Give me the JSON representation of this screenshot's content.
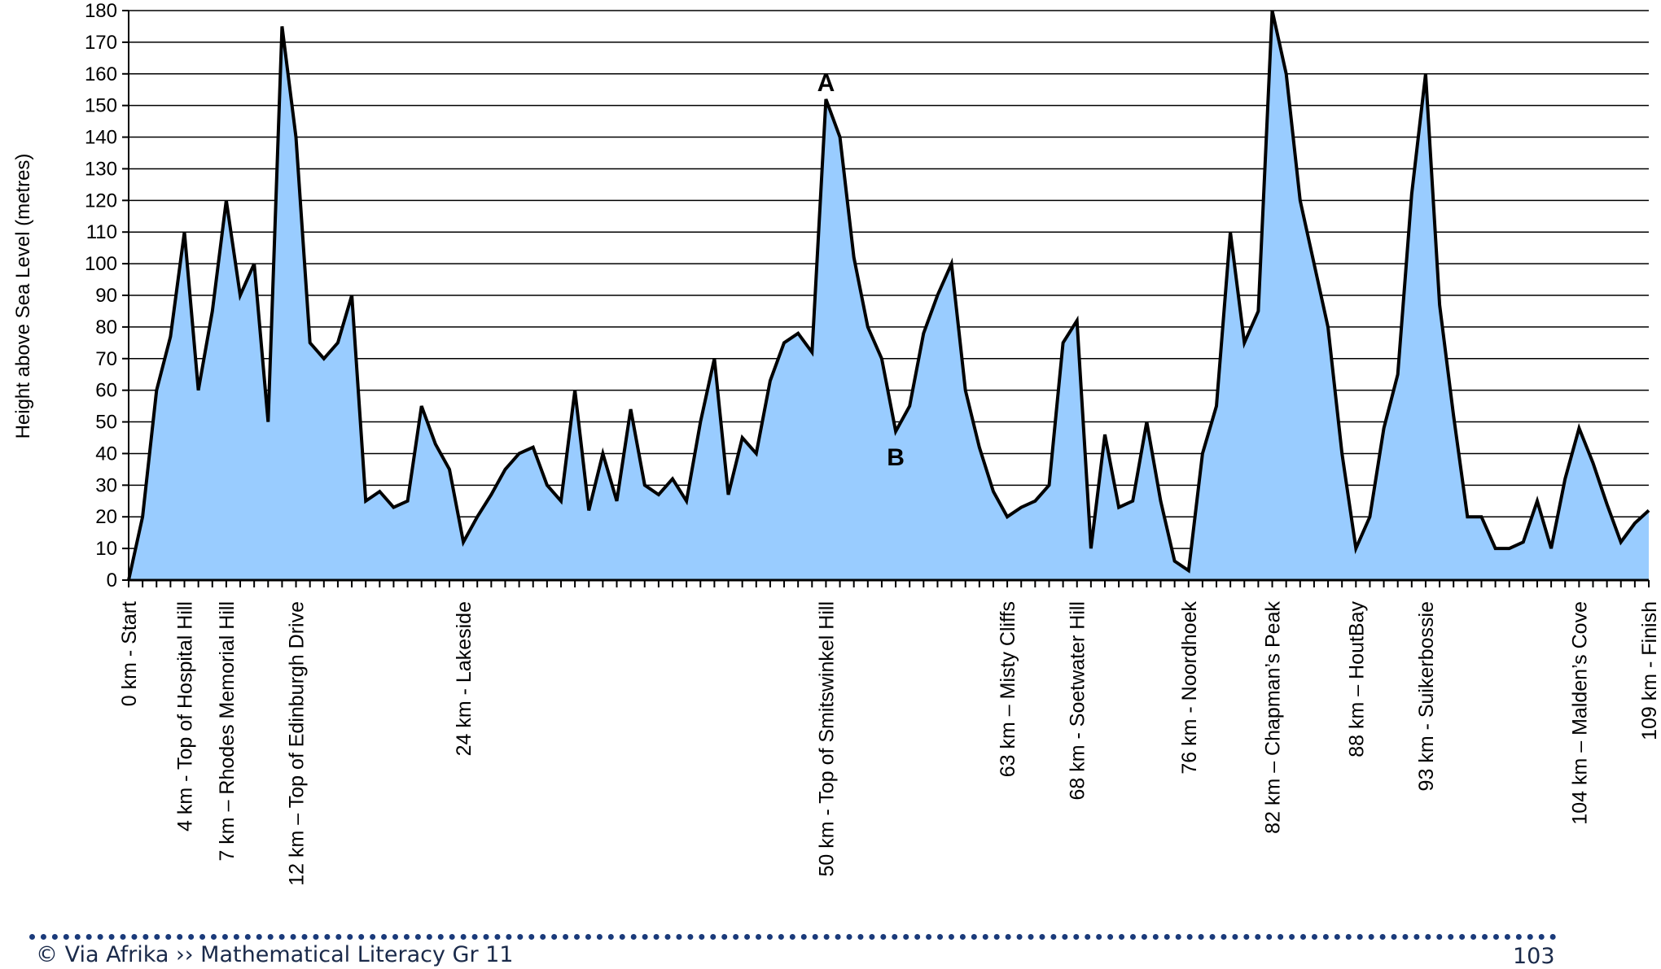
{
  "chart_data": {
    "type": "area",
    "title": "",
    "xlabel": "",
    "ylabel": "Height above Sea Level (metres)",
    "ylim": [
      0,
      180
    ],
    "ytick_step": 10,
    "yticks": [
      "0",
      "10",
      "20",
      "30",
      "40",
      "50",
      "60",
      "70",
      "80",
      "90",
      "100",
      "110",
      "120",
      "130",
      "140",
      "150",
      "160",
      "170",
      "180"
    ],
    "grid": true,
    "fill_color": "#99ccff",
    "line_color": "#000000",
    "xlim": [
      0,
      109
    ],
    "series": [
      {
        "x": [
          0,
          1,
          2,
          3,
          4,
          5,
          6,
          7,
          8,
          9,
          10,
          11,
          12,
          13,
          14,
          15,
          16,
          17,
          18,
          19,
          20,
          21,
          22,
          23,
          24,
          25,
          26,
          27,
          28,
          29,
          30,
          31,
          32,
          33,
          34,
          35,
          36,
          37,
          38,
          39,
          40,
          41,
          42,
          43,
          44,
          45,
          46,
          47,
          48,
          49,
          50,
          51,
          52,
          53,
          54,
          55,
          56,
          57,
          58,
          59,
          60,
          61,
          62,
          63,
          64,
          65,
          66,
          67,
          68,
          69,
          70,
          71,
          72,
          73,
          74,
          75,
          76,
          77,
          78,
          79,
          80,
          81,
          82,
          83,
          84,
          85,
          86,
          87,
          88,
          89,
          90,
          91,
          92,
          93,
          94,
          95,
          96,
          97,
          98,
          99,
          100,
          101,
          102,
          103,
          104,
          105,
          106,
          107,
          108,
          109
        ],
        "y": [
          0,
          20,
          60,
          77,
          110,
          60,
          85,
          120,
          90,
          100,
          50,
          175,
          140,
          75,
          70,
          75,
          90,
          25,
          28,
          23,
          25,
          55,
          43,
          35,
          12,
          20,
          27,
          35,
          40,
          42,
          30,
          25,
          60,
          22,
          40,
          25,
          54,
          30,
          27,
          32,
          25,
          50,
          70,
          27,
          45,
          40,
          63,
          75,
          78,
          72,
          152,
          140,
          102,
          80,
          70,
          47,
          55,
          78,
          90,
          100,
          60,
          42,
          28,
          20,
          23,
          25,
          30,
          75,
          82,
          10,
          46,
          23,
          25,
          50,
          25,
          6,
          3,
          40,
          55,
          110,
          75,
          85,
          180,
          160,
          120,
          100,
          80,
          40,
          10,
          20,
          48,
          65,
          122,
          160,
          87,
          52,
          20,
          20,
          10,
          10,
          12,
          25,
          10,
          32,
          48,
          37,
          24,
          12,
          18,
          22
        ]
      }
    ],
    "category_labels": [
      {
        "x": 0,
        "label": "0 km - Start"
      },
      {
        "x": 4,
        "label": "4 km - Top of Hospital Hill"
      },
      {
        "x": 7,
        "label": "7 km – Rhodes Memorial Hill"
      },
      {
        "x": 12,
        "label": "12 km – Top of Edinburgh Drive"
      },
      {
        "x": 24,
        "label": "24 km - Lakeside"
      },
      {
        "x": 50,
        "label": "50 km - Top of Smitswinkel Hill"
      },
      {
        "x": 63,
        "label": "63 km – Misty Cliffs"
      },
      {
        "x": 68,
        "label": "68 km - Soetwater Hill"
      },
      {
        "x": 76,
        "label": "76 km - Noordhoek"
      },
      {
        "x": 82,
        "label": "82 km – Chapman’s Peak"
      },
      {
        "x": 88,
        "label": "88 km – HoutBay"
      },
      {
        "x": 93,
        "label": "93 km - Suikerbossie"
      },
      {
        "x": 104,
        "label": "104 km – Malden’s Cove"
      },
      {
        "x": 109,
        "label": "109 km - Finish"
      }
    ],
    "annotations": [
      {
        "text": "A",
        "x": 50,
        "y": 152,
        "position": "above"
      },
      {
        "text": "B",
        "x": 55,
        "y": 47,
        "position": "below"
      }
    ]
  },
  "footer": {
    "left": "© Via Afrika ›› Mathematical Literacy Gr 11",
    "right": "103"
  }
}
